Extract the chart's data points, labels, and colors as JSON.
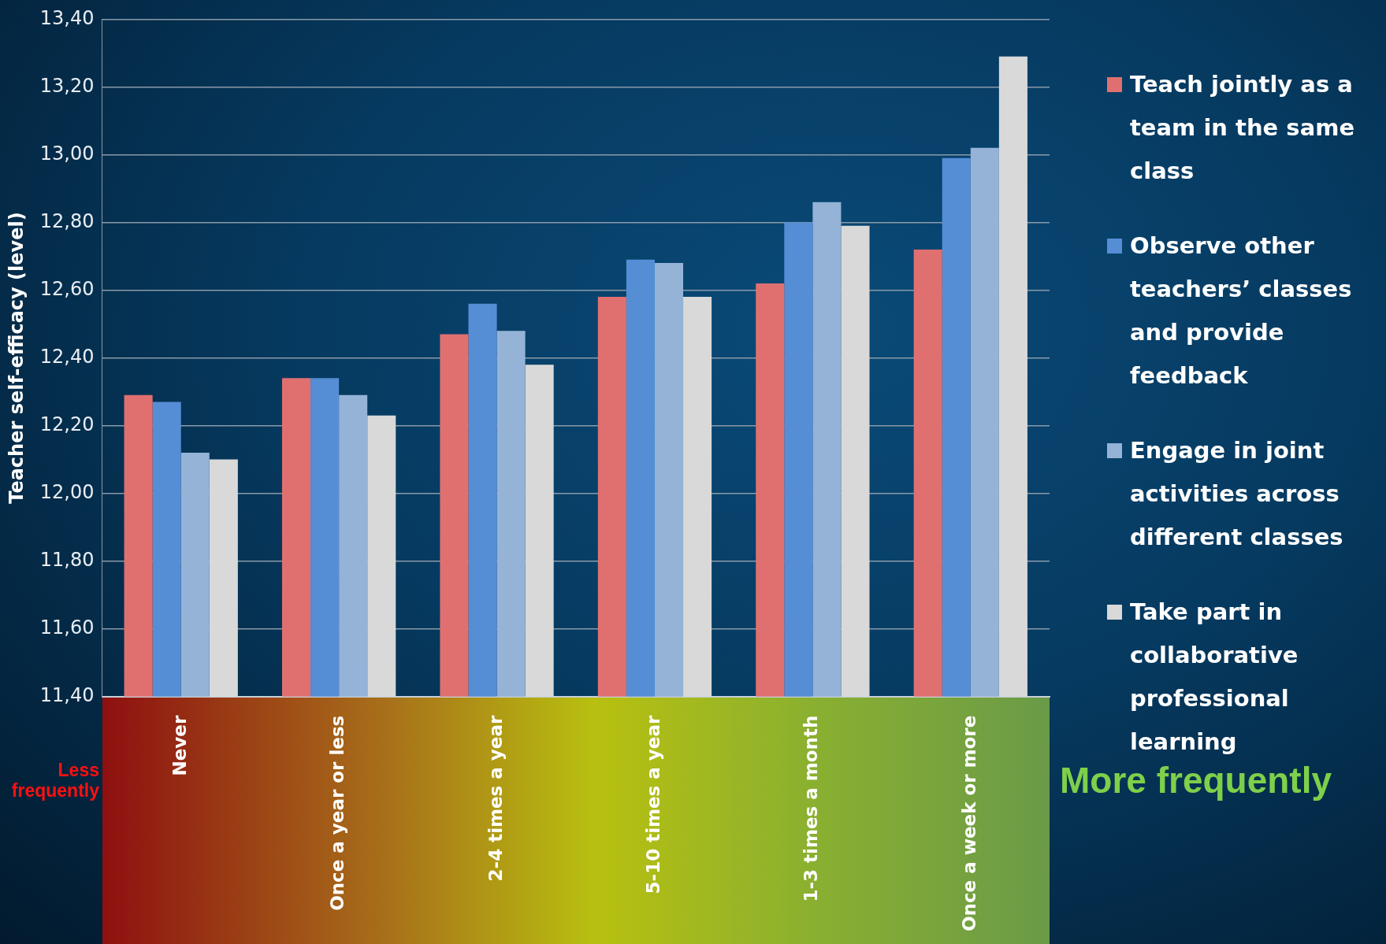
{
  "chart_data": {
    "type": "bar",
    "ylabel": "Teacher self-efficacy (level)",
    "categories": [
      "Never",
      "Once a year or less",
      "2-4 times a year",
      "5-10 times a year",
      "1-3 times a month",
      "Once a week or more"
    ],
    "series": [
      {
        "name": "Teach jointly as a team in the same class",
        "color": "#e07070",
        "values": [
          12.29,
          12.34,
          12.47,
          12.58,
          12.62,
          12.72
        ]
      },
      {
        "name": "Observe other teachers’ classes and provide feedback",
        "color": "#558ed5",
        "values": [
          12.27,
          12.34,
          12.56,
          12.69,
          12.8,
          12.99
        ]
      },
      {
        "name": "Engage in joint activities across different classes",
        "color": "#95b3d7",
        "values": [
          12.12,
          12.29,
          12.48,
          12.68,
          12.86,
          13.02
        ]
      },
      {
        "name": "Take part in collaborative professional learning",
        "color": "#d9d9d9",
        "values": [
          12.1,
          12.23,
          12.38,
          12.58,
          12.79,
          13.29
        ]
      }
    ],
    "ylim": [
      11.4,
      13.4
    ],
    "yticks": [
      {
        "value": 11.4,
        "label": "11,40"
      },
      {
        "value": 11.6,
        "label": "11,60"
      },
      {
        "value": 11.8,
        "label": "11,80"
      },
      {
        "value": 12.0,
        "label": "12,00"
      },
      {
        "value": 12.2,
        "label": "12,20"
      },
      {
        "value": 12.4,
        "label": "12,40"
      },
      {
        "value": 12.6,
        "label": "12,60"
      },
      {
        "value": 12.8,
        "label": "12,80"
      },
      {
        "value": 13.0,
        "label": "13,00"
      },
      {
        "value": 13.2,
        "label": "13,20"
      },
      {
        "value": 13.4,
        "label": "13,40"
      }
    ],
    "grid": "y",
    "legend": "right",
    "annotations": [
      "Less frequently",
      "More frequently"
    ]
  }
}
